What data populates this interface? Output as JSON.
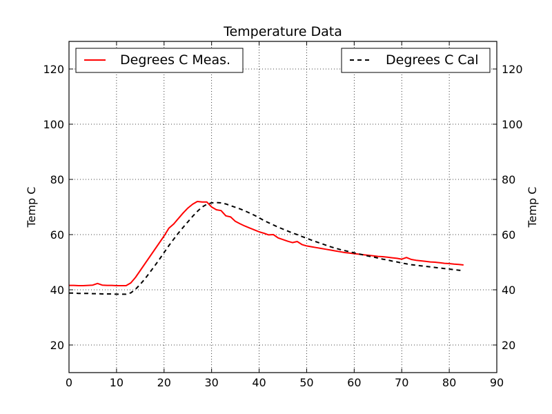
{
  "chart_data": {
    "type": "line",
    "title": "Temperature Data",
    "xlabel": "",
    "ylabel": "Temp C",
    "ylabel_right": "Temp C",
    "xlim": [
      0,
      90
    ],
    "ylim": [
      10,
      130
    ],
    "xticks": [
      0,
      10,
      20,
      30,
      40,
      50,
      60,
      70,
      80,
      90
    ],
    "yticks": [
      20,
      40,
      60,
      80,
      100,
      120
    ],
    "grid": true,
    "series": [
      {
        "name": "Degrees C Meas.",
        "color": "#ff0000",
        "style": "solid",
        "legend": "upper-left",
        "x": [
          0,
          1,
          2,
          3,
          4,
          5,
          6,
          7,
          8,
          9,
          10,
          11,
          12,
          13,
          14,
          15,
          16,
          17,
          18,
          19,
          20,
          21,
          22,
          23,
          24,
          25,
          26,
          27,
          28,
          29,
          30,
          31,
          32,
          33,
          34,
          35,
          36,
          37,
          38,
          39,
          40,
          41,
          42,
          43,
          44,
          45,
          46,
          47,
          48,
          49,
          50,
          51,
          52,
          53,
          54,
          55,
          56,
          57,
          58,
          59,
          60,
          61,
          62,
          63,
          64,
          65,
          66,
          67,
          68,
          69,
          70,
          71,
          72,
          73,
          74,
          75,
          76,
          77,
          78,
          79,
          80,
          81,
          82,
          83
        ],
        "y": [
          41.6,
          41.6,
          41.5,
          41.5,
          41.6,
          41.7,
          42.3,
          41.7,
          41.6,
          41.6,
          41.5,
          41.5,
          41.5,
          42.5,
          44.5,
          47,
          49.5,
          52,
          54.5,
          57,
          59.5,
          62.3,
          63.8,
          65.8,
          67.8,
          69.6,
          71,
          72,
          71.8,
          71.8,
          70,
          69,
          68.7,
          66.8,
          66.4,
          64.8,
          63.9,
          63.1,
          62.4,
          61.7,
          61,
          60.5,
          59.9,
          60,
          58.8,
          58.2,
          57.6,
          57.1,
          57.5,
          56.4,
          55.9,
          55.6,
          55.3,
          55,
          54.7,
          54.4,
          54.1,
          53.8,
          53.5,
          53.3,
          53.1,
          52.9,
          52.7,
          52.5,
          52.3,
          52.1,
          52,
          51.8,
          51.6,
          51.4,
          51.1,
          51.7,
          51,
          50.7,
          50.5,
          50.3,
          50.1,
          50,
          49.8,
          49.6,
          49.5,
          49.3,
          49.2,
          49
        ]
      },
      {
        "name": "Degrees C Cal",
        "color": "#000000",
        "style": "dashed",
        "legend": "upper-right",
        "x": [
          0,
          1,
          2,
          3,
          4,
          5,
          6,
          7,
          8,
          9,
          10,
          11,
          12,
          13,
          14,
          15,
          16,
          17,
          18,
          19,
          20,
          21,
          22,
          23,
          24,
          25,
          26,
          27,
          28,
          29,
          30,
          31,
          32,
          33,
          34,
          35,
          36,
          37,
          38,
          39,
          40,
          41,
          42,
          43,
          44,
          45,
          46,
          47,
          48,
          49,
          50,
          51,
          52,
          53,
          54,
          55,
          56,
          57,
          58,
          59,
          60,
          61,
          62,
          63,
          64,
          65,
          66,
          67,
          68,
          69,
          70,
          71,
          72,
          73,
          74,
          75,
          76,
          77,
          78,
          79,
          80,
          81,
          82,
          83
        ],
        "y": [
          38.8,
          38.8,
          38.7,
          38.7,
          38.7,
          38.6,
          38.6,
          38.5,
          38.5,
          38.5,
          38.4,
          38.4,
          38.4,
          38.9,
          40.2,
          42,
          44,
          46.3,
          48.6,
          51,
          53.5,
          56,
          58.3,
          60.5,
          62.6,
          64.6,
          66.6,
          68.4,
          70,
          71,
          71.5,
          71.6,
          71.5,
          71.1,
          70.5,
          69.9,
          69.3,
          68.6,
          67.8,
          67,
          66.1,
          65.1,
          64.3,
          63.5,
          62.7,
          62,
          61.3,
          60.6,
          60,
          59.3,
          58.7,
          58,
          57.4,
          56.8,
          56.2,
          55.6,
          55.1,
          54.6,
          54.2,
          53.8,
          53.4,
          53,
          52.6,
          52.2,
          51.9,
          51.5,
          51.1,
          50.8,
          50.4,
          50.1,
          49.7,
          49.4,
          49.1,
          48.9,
          48.7,
          48.5,
          48.3,
          48.1,
          47.9,
          47.7,
          47.5,
          47.3,
          47.1,
          46.9
        ]
      }
    ]
  }
}
